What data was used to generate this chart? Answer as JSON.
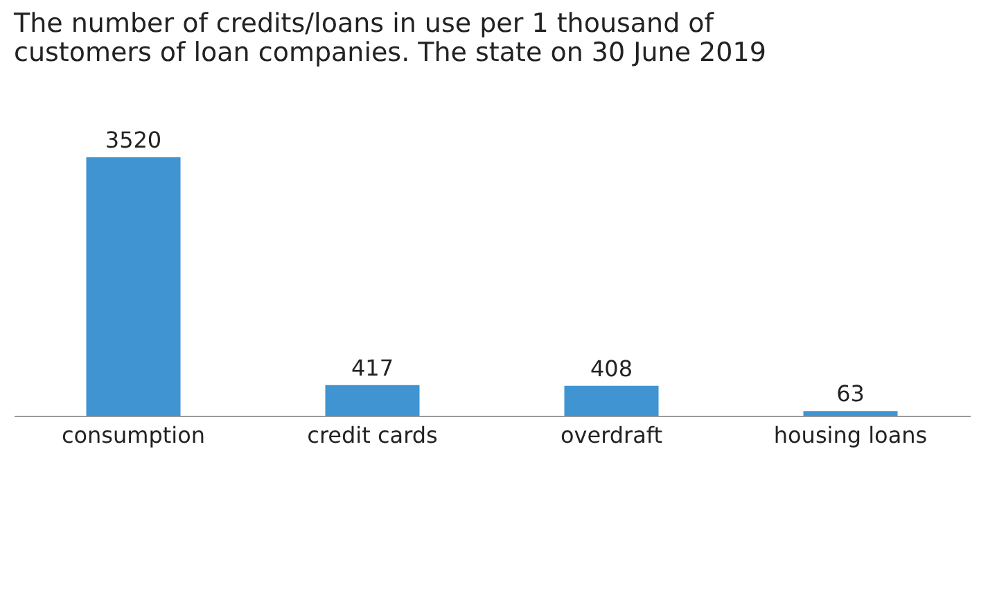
{
  "chart_data": {
    "type": "bar",
    "title": [
      "The number of credits/loans in use per 1 thousand of",
      "customers of loan companies. The state on 30 June 2019"
    ],
    "categories": [
      "consumption",
      "credit cards",
      "overdraft",
      "housing loans"
    ],
    "values": [
      3520,
      417,
      408,
      63
    ],
    "color": "#3f94d1",
    "data_labels": true,
    "tick_labels": "x",
    "grid": false
  }
}
